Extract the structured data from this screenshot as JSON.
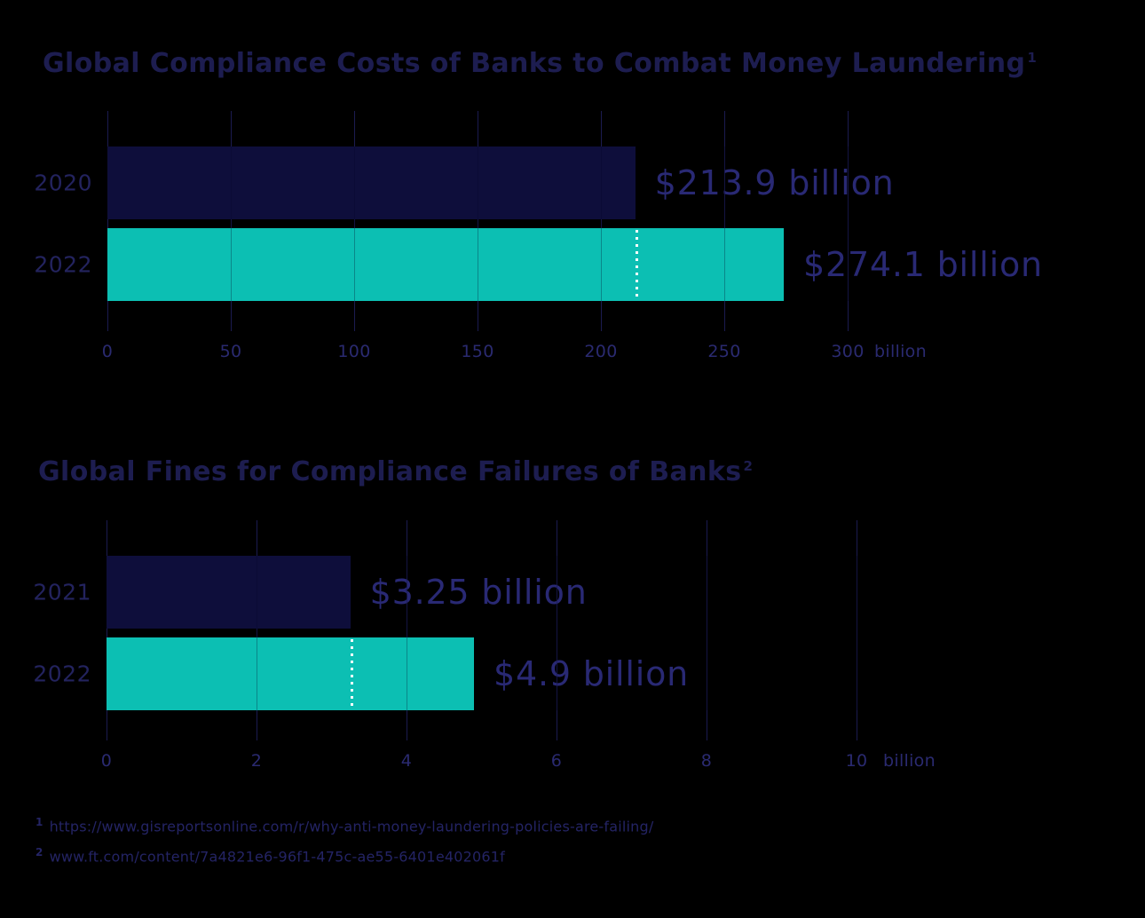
{
  "background_color": "#000000",
  "colors": {
    "navy_bar": "#0E0E3B",
    "teal_bar": "#0CBFB3",
    "title_text": "#1D1D50",
    "category_text": "#23235E",
    "tick_text": "#2A2A70",
    "value_text": "#292974",
    "footnote_text": "#242465",
    "gridline": "#1B1B50",
    "reference_dotted_line": "#FFFFFF"
  },
  "chart_data": [
    {
      "type": "bar",
      "orientation": "horizontal",
      "title": "Global Compliance Costs of Banks to Combat Money Laundering",
      "title_superscript": "1",
      "axis": {
        "min": 0,
        "max": 300,
        "tick_values": [
          0,
          50,
          100,
          150,
          200,
          250,
          300
        ],
        "ticks": [
          "0",
          "50",
          "100",
          "150",
          "200",
          "250",
          "300"
        ],
        "unit_label": "billion",
        "grid": true
      },
      "categories": [
        "2020",
        "2022"
      ],
      "bars": [
        {
          "category": "2020",
          "value": 213.9,
          "value_label": "$213.9 billion",
          "color": "#0E0E3B"
        },
        {
          "category": "2022",
          "value": 274.1,
          "value_label": "$274.1 billion",
          "color": "#0CBFB3",
          "reference_line_at": 213.9
        }
      ]
    },
    {
      "type": "bar",
      "orientation": "horizontal",
      "title": "Global Fines for Compliance Failures of Banks",
      "title_superscript": "2",
      "axis": {
        "min": 0,
        "max": 10,
        "tick_values": [
          0,
          2,
          4,
          6,
          8,
          10
        ],
        "ticks": [
          "0",
          "2",
          "4",
          "6",
          "8",
          "10"
        ],
        "unit_label": "billion",
        "grid": true
      },
      "categories": [
        "2021",
        "2022"
      ],
      "bars": [
        {
          "category": "2021",
          "value": 3.25,
          "value_label": "$3.25 billion",
          "color": "#0E0E3B"
        },
        {
          "category": "2022",
          "value": 4.9,
          "value_label": "$4.9 billion",
          "color": "#0CBFB3",
          "reference_line_at": 3.25
        }
      ]
    }
  ],
  "footnotes": [
    {
      "marker": "1",
      "text": "https://www.gisreportsonline.com/r/why-anti-money-laundering-policies-are-failing/"
    },
    {
      "marker": "2",
      "text": "www.ft.com/content/7a4821e6-96f1-475c-ae55-6401e402061f"
    }
  ]
}
